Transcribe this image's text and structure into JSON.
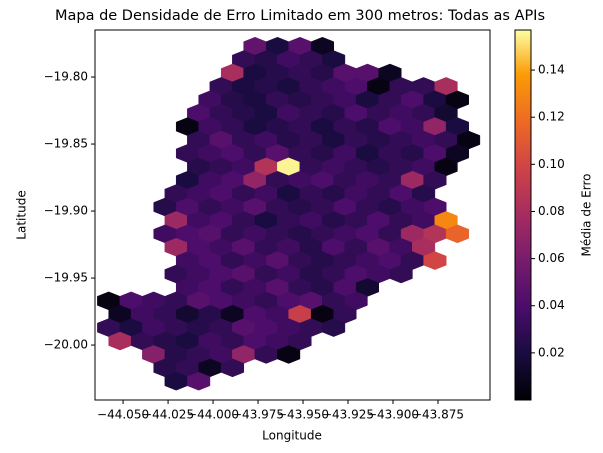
{
  "chart_data": {
    "type": "hexbin",
    "title": "Mapa de Densidade de Erro Limitado em 300 metros: Todas as APIs",
    "xlabel": "Longitude",
    "ylabel": "Latitude",
    "colorbar_label": "Média de Erro",
    "colormap": "inferno",
    "xlim": [
      -44.0656,
      -43.8461
    ],
    "ylim": [
      -20.041,
      -19.7649
    ],
    "clim": [
      0,
      0.157
    ],
    "xticks": [
      {
        "value": -44.05,
        "label": "−44.050"
      },
      {
        "value": -44.025,
        "label": "−44.025"
      },
      {
        "value": -44.0,
        "label": "−44.000"
      },
      {
        "value": -43.975,
        "label": "−43.975"
      },
      {
        "value": -43.95,
        "label": "−43.950"
      },
      {
        "value": -43.925,
        "label": "−43.925"
      },
      {
        "value": -43.9,
        "label": "−43.900"
      },
      {
        "value": -43.875,
        "label": "−43.875"
      }
    ],
    "yticks": [
      {
        "value": -19.8,
        "label": "−19.80"
      },
      {
        "value": -19.85,
        "label": "−19.85"
      },
      {
        "value": -19.9,
        "label": "−19.90"
      },
      {
        "value": -19.95,
        "label": "−19.95"
      },
      {
        "value": -20.0,
        "label": "−20.00"
      }
    ],
    "cticks": [
      0.02,
      0.04,
      0.06,
      0.08,
      {
        "value": 0.1,
        "label": "0.10"
      },
      0.12,
      0.14
    ],
    "x": [
      -43.9767,
      -43.9642,
      -43.9517,
      -43.9392,
      -43.983,
      -43.9705,
      -43.958,
      -43.9455,
      -43.933,
      -43.9892,
      -43.9767,
      -43.9642,
      -43.9517,
      -43.9392,
      -43.9267,
      -43.9142,
      -43.9017,
      -43.9955,
      -43.983,
      -43.9705,
      -43.958,
      -43.9455,
      -43.933,
      -43.9205,
      -43.908,
      -43.8955,
      -43.883,
      -43.8705,
      -44.0017,
      -43.9892,
      -43.9767,
      -43.9642,
      -43.9517,
      -43.9392,
      -43.9267,
      -43.9142,
      -43.9017,
      -43.8892,
      -43.8767,
      -43.8642,
      -44.008,
      -43.9955,
      -43.983,
      -43.9705,
      -43.958,
      -43.9455,
      -43.933,
      -43.9205,
      -43.908,
      -43.8955,
      -43.883,
      -43.8705,
      -44.0142,
      -44.0017,
      -43.9892,
      -43.9767,
      -43.9642,
      -43.9517,
      -43.9392,
      -43.9267,
      -43.9142,
      -43.9017,
      -43.8892,
      -43.8767,
      -43.8642,
      -44.008,
      -43.9955,
      -43.983,
      -43.9705,
      -43.958,
      -43.9455,
      -43.933,
      -43.9205,
      -43.908,
      -43.8955,
      -43.883,
      -43.8705,
      -43.858,
      -44.0142,
      -44.0017,
      -43.9892,
      -43.9767,
      -43.9642,
      -43.9517,
      -43.9392,
      -43.9267,
      -43.9142,
      -43.9017,
      -43.8892,
      -43.8767,
      -43.8642,
      -44.008,
      -43.9955,
      -43.983,
      -43.9705,
      -43.958,
      -43.9455,
      -43.933,
      -43.9205,
      -43.908,
      -43.8955,
      -43.883,
      -43.8705,
      -44.0142,
      -44.0017,
      -43.9892,
      -43.9767,
      -43.9642,
      -43.9517,
      -43.9392,
      -43.9267,
      -43.9142,
      -43.9017,
      -43.8892,
      -43.8767,
      -44.0205,
      -44.008,
      -43.9955,
      -43.983,
      -43.9705,
      -43.958,
      -43.9455,
      -43.933,
      -43.9205,
      -43.908,
      -43.8955,
      -43.883,
      -44.0267,
      -44.0142,
      -44.0017,
      -43.9892,
      -43.9767,
      -43.9642,
      -43.9517,
      -43.9392,
      -43.9267,
      -43.9142,
      -43.9017,
      -43.8892,
      -43.8767,
      -44.0205,
      -44.008,
      -43.9955,
      -43.983,
      -43.9705,
      -43.958,
      -43.9455,
      -43.933,
      -43.9205,
      -43.908,
      -43.8955,
      -43.883,
      -43.8705,
      -44.0267,
      -44.0142,
      -44.0017,
      -43.9892,
      -43.9767,
      -43.9642,
      -43.9517,
      -43.9392,
      -43.9267,
      -43.9142,
      -43.9017,
      -43.8892,
      -43.8767,
      -43.8642,
      -44.0205,
      -44.008,
      -43.9955,
      -43.983,
      -43.9705,
      -43.958,
      -43.9455,
      -43.933,
      -43.9205,
      -43.908,
      -43.8955,
      -43.883,
      -44.0142,
      -44.0017,
      -43.9892,
      -43.9767,
      -43.9642,
      -43.9517,
      -43.9392,
      -43.9267,
      -43.9142,
      -43.9017,
      -43.8892,
      -43.8767,
      -44.0205,
      -44.008,
      -43.9955,
      -43.983,
      -43.9705,
      -43.958,
      -43.9455,
      -43.933,
      -43.9205,
      -43.908,
      -43.8955,
      -44.0142,
      -44.0017,
      -43.9892,
      -43.9767,
      -43.9642,
      -43.9517,
      -43.9392,
      -43.9267,
      -43.9142,
      -44.058,
      -44.0455,
      -44.033,
      -44.0205,
      -44.008,
      -43.9955,
      -43.983,
      -43.9705,
      -43.958,
      -43.9455,
      -43.933,
      -43.9205,
      -44.0517,
      -44.0392,
      -44.0267,
      -44.0142,
      -44.0017,
      -43.9892,
      -43.9767,
      -43.9642,
      -43.9517,
      -43.9392,
      -43.9267,
      -44.058,
      -44.0455,
      -44.033,
      -44.0205,
      -44.008,
      -43.9955,
      -43.983,
      -43.9705,
      -43.958,
      -43.9455,
      -43.933,
      -44.0517,
      -44.0392,
      -44.0267,
      -44.0142,
      -44.0017,
      -43.9892,
      -43.9767,
      -43.9642,
      -43.9517,
      -44.033,
      -44.0205,
      -44.008,
      -43.9955,
      -43.983,
      -43.9705,
      -43.958,
      -44.0267,
      -44.0142,
      -44.0017,
      -43.9892,
      -44.0205,
      -44.008
    ],
    "y": [
      -19.777,
      -19.777,
      -19.777,
      -19.777,
      -19.787,
      -19.787,
      -19.787,
      -19.787,
      -19.787,
      -19.797,
      -19.797,
      -19.797,
      -19.797,
      -19.797,
      -19.797,
      -19.797,
      -19.797,
      -19.807,
      -19.807,
      -19.807,
      -19.807,
      -19.807,
      -19.807,
      -19.807,
      -19.807,
      -19.807,
      -19.807,
      -19.807,
      -19.817,
      -19.817,
      -19.817,
      -19.817,
      -19.817,
      -19.817,
      -19.817,
      -19.817,
      -19.817,
      -19.817,
      -19.817,
      -19.817,
      -19.827,
      -19.827,
      -19.827,
      -19.827,
      -19.827,
      -19.827,
      -19.827,
      -19.827,
      -19.827,
      -19.827,
      -19.827,
      -19.827,
      -19.837,
      -19.837,
      -19.837,
      -19.837,
      -19.837,
      -19.837,
      -19.837,
      -19.837,
      -19.837,
      -19.837,
      -19.837,
      -19.837,
      -19.837,
      -19.847,
      -19.847,
      -19.847,
      -19.847,
      -19.847,
      -19.847,
      -19.847,
      -19.847,
      -19.847,
      -19.847,
      -19.847,
      -19.847,
      -19.847,
      -19.857,
      -19.857,
      -19.857,
      -19.857,
      -19.857,
      -19.857,
      -19.857,
      -19.857,
      -19.857,
      -19.857,
      -19.857,
      -19.857,
      -19.857,
      -19.867,
      -19.867,
      -19.867,
      -19.867,
      -19.867,
      -19.867,
      -19.867,
      -19.867,
      -19.867,
      -19.867,
      -19.867,
      -19.867,
      -19.877,
      -19.877,
      -19.877,
      -19.877,
      -19.877,
      -19.877,
      -19.877,
      -19.877,
      -19.877,
      -19.877,
      -19.877,
      -19.877,
      -19.887,
      -19.887,
      -19.887,
      -19.887,
      -19.887,
      -19.887,
      -19.887,
      -19.887,
      -19.887,
      -19.887,
      -19.887,
      -19.887,
      -19.897,
      -19.897,
      -19.897,
      -19.897,
      -19.897,
      -19.897,
      -19.897,
      -19.897,
      -19.897,
      -19.897,
      -19.897,
      -19.897,
      -19.897,
      -19.907,
      -19.907,
      -19.907,
      -19.907,
      -19.907,
      -19.907,
      -19.907,
      -19.907,
      -19.907,
      -19.907,
      -19.907,
      -19.907,
      -19.907,
      -19.917,
      -19.917,
      -19.917,
      -19.917,
      -19.917,
      -19.917,
      -19.917,
      -19.917,
      -19.917,
      -19.917,
      -19.917,
      -19.917,
      -19.917,
      -19.917,
      -19.927,
      -19.927,
      -19.927,
      -19.927,
      -19.927,
      -19.927,
      -19.927,
      -19.927,
      -19.927,
      -19.927,
      -19.927,
      -19.927,
      -19.937,
      -19.937,
      -19.937,
      -19.937,
      -19.937,
      -19.937,
      -19.937,
      -19.937,
      -19.937,
      -19.937,
      -19.937,
      -19.937,
      -19.947,
      -19.947,
      -19.947,
      -19.947,
      -19.947,
      -19.947,
      -19.947,
      -19.947,
      -19.947,
      -19.947,
      -19.947,
      -19.957,
      -19.957,
      -19.957,
      -19.957,
      -19.957,
      -19.957,
      -19.957,
      -19.957,
      -19.957,
      -19.967,
      -19.967,
      -19.967,
      -19.967,
      -19.967,
      -19.967,
      -19.967,
      -19.967,
      -19.967,
      -19.967,
      -19.967,
      -19.967,
      -19.977,
      -19.977,
      -19.977,
      -19.977,
      -19.977,
      -19.977,
      -19.977,
      -19.977,
      -19.977,
      -19.977,
      -19.977,
      -19.987,
      -19.987,
      -19.987,
      -19.987,
      -19.987,
      -19.987,
      -19.987,
      -19.987,
      -19.987,
      -19.987,
      -19.987,
      -19.997,
      -19.997,
      -19.997,
      -19.997,
      -19.997,
      -19.997,
      -19.997,
      -19.997,
      -19.997,
      -20.007,
      -20.007,
      -20.007,
      -20.007,
      -20.007,
      -20.007,
      -20.007,
      -20.017,
      -20.017,
      -20.017,
      -20.017,
      -20.027,
      -20.027
    ],
    "values": [
      0.05,
      0.02,
      0.045,
      0.01,
      0.03,
      0.025,
      0.035,
      0.03,
      0.02,
      0.08,
      0.02,
      0.025,
      0.03,
      0.025,
      0.045,
      0.045,
      0.01,
      0.03,
      0.02,
      0.025,
      0.02,
      0.03,
      0.035,
      0.04,
      0.005,
      0.03,
      0.03,
      0.08,
      0.035,
      0.025,
      0.02,
      0.03,
      0.025,
      0.03,
      0.035,
      0.02,
      0.03,
      0.04,
      0.02,
      0.005,
      0.04,
      0.03,
      0.025,
      0.02,
      0.035,
      0.03,
      0.025,
      0.04,
      0.03,
      0.035,
      0.03,
      0.015,
      0.005,
      0.035,
      0.03,
      0.02,
      0.025,
      0.03,
      0.02,
      0.03,
      0.025,
      0.04,
      0.035,
      0.07,
      0.02,
      0.03,
      0.045,
      0.03,
      0.035,
      0.025,
      0.03,
      0.02,
      0.03,
      0.025,
      0.03,
      0.035,
      0.03,
      0.005,
      0.03,
      0.035,
      0.04,
      0.03,
      0.045,
      0.03,
      0.025,
      0.035,
      0.02,
      0.03,
      0.025,
      0.04,
      0.01,
      0.025,
      0.03,
      0.035,
      0.085,
      0.155,
      0.03,
      0.035,
      0.03,
      0.025,
      0.03,
      0.035,
      0.005,
      0.02,
      0.035,
      0.04,
      0.07,
      0.03,
      0.035,
      0.04,
      0.03,
      0.035,
      0.03,
      0.075,
      0.03,
      0.03,
      0.035,
      0.04,
      0.03,
      0.035,
      0.02,
      0.03,
      0.025,
      0.035,
      0.03,
      0.04,
      0.025,
      0.025,
      0.04,
      0.03,
      0.035,
      0.045,
      0.03,
      0.025,
      0.03,
      0.04,
      0.03,
      0.025,
      0.035,
      0.04,
      0.075,
      0.035,
      0.04,
      0.03,
      0.02,
      0.03,
      0.035,
      0.025,
      0.03,
      0.04,
      0.03,
      0.035,
      0.13,
      0.035,
      0.04,
      0.045,
      0.03,
      0.035,
      0.03,
      0.025,
      0.03,
      0.035,
      0.04,
      0.03,
      0.075,
      0.085,
      0.115,
      0.075,
      0.04,
      0.035,
      0.045,
      0.03,
      0.035,
      0.025,
      0.04,
      0.03,
      0.045,
      0.035,
      0.08,
      0.035,
      0.04,
      0.03,
      0.035,
      0.045,
      0.03,
      0.025,
      0.03,
      0.035,
      0.04,
      0.03,
      0.1,
      0.03,
      0.035,
      0.04,
      0.045,
      0.03,
      0.035,
      0.025,
      0.03,
      0.04,
      0.035,
      0.03,
      0.035,
      0.04,
      0.03,
      0.035,
      0.045,
      0.03,
      0.025,
      0.04,
      0.015,
      0.005,
      0.04,
      0.035,
      0.03,
      0.045,
      0.04,
      0.035,
      0.03,
      0.04,
      0.045,
      0.03,
      0.035,
      0.01,
      0.035,
      0.03,
      0.015,
      0.025,
      0.01,
      0.04,
      0.035,
      0.095,
      0.005,
      0.03,
      0.03,
      0.02,
      0.035,
      0.03,
      0.025,
      0.03,
      0.045,
      0.04,
      0.035,
      0.03,
      0.025,
      0.08,
      0.03,
      0.025,
      0.02,
      0.035,
      0.03,
      0.04,
      0.035,
      0.03,
      0.065,
      0.025,
      0.03,
      0.035,
      0.07,
      0.03,
      0.005,
      0.025,
      0.03,
      0.01,
      0.03,
      0.02,
      0.045
    ]
  }
}
